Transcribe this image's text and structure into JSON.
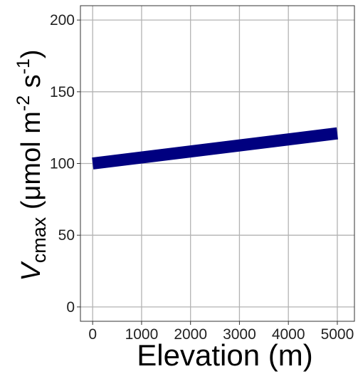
{
  "chart_data": {
    "type": "line",
    "xlabel": "Elevation (m)",
    "ylabel": {
      "symbol": "V",
      "subscript": "cmax",
      "unit_open": " (μmol m",
      "exp1": "-2",
      "unit_mid": " s",
      "exp2": "-1",
      "unit_close": ")"
    },
    "xlim": [
      -250,
      5350
    ],
    "ylim": [
      -10,
      210
    ],
    "xticks": [
      0,
      1000,
      2000,
      3000,
      4000,
      5000
    ],
    "yticks": [
      0,
      50,
      100,
      150,
      200
    ],
    "grid": true,
    "series": [
      {
        "color": "#000080",
        "x": [
          0,
          5000
        ],
        "y": [
          100,
          121
        ]
      }
    ]
  }
}
